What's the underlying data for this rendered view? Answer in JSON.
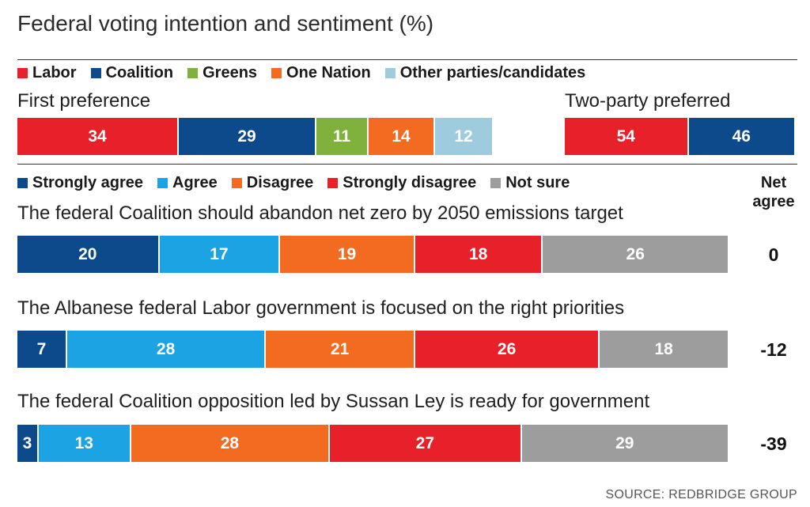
{
  "title": "Federal voting intention and sentiment (%)",
  "source": "SOURCE: REDBRIDGE GROUP",
  "colors": {
    "labor": "#e8202a",
    "coalition": "#0d4a8b",
    "greens": "#7fb13c",
    "one_nation": "#f26b21",
    "other": "#9fcbdf",
    "strongly_agree": "#0d4a8b",
    "agree": "#1ba3e3",
    "disagree": "#f26b21",
    "strongly_disagree": "#e8202a",
    "not_sure": "#9d9d9d"
  },
  "net_agree_header": "Net agree",
  "chart_data": [
    {
      "type": "bar",
      "title": "First preference",
      "legend": [
        "Labor",
        "Coalition",
        "Greens",
        "One Nation",
        "Other parties/candidates"
      ],
      "series": [
        {
          "name": "Labor",
          "value": 34
        },
        {
          "name": "Coalition",
          "value": 29
        },
        {
          "name": "Greens",
          "value": 11
        },
        {
          "name": "One Nation",
          "value": 14
        },
        {
          "name": "Other parties/candidates",
          "value": 12
        }
      ]
    },
    {
      "type": "bar",
      "title": "Two-party preferred",
      "series": [
        {
          "name": "Labor",
          "value": 54
        },
        {
          "name": "Coalition",
          "value": 46
        }
      ]
    },
    {
      "type": "bar",
      "legend": [
        "Strongly agree",
        "Agree",
        "Disagree",
        "Strongly disagree",
        "Not sure"
      ],
      "net_header": "Net agree",
      "questions": [
        {
          "text": "The federal Coalition should abandon net zero by 2050 emissions target",
          "values": [
            20,
            17,
            19,
            18,
            26
          ],
          "net": "0"
        },
        {
          "text": "The Albanese federal Labor government is focused on the right priorities",
          "values": [
            7,
            28,
            21,
            26,
            18
          ],
          "net": "-12"
        },
        {
          "text": "The federal Coalition opposition led by Sussan Ley is ready for government",
          "values": [
            3,
            13,
            28,
            27,
            29
          ],
          "net": "-39"
        }
      ]
    }
  ]
}
